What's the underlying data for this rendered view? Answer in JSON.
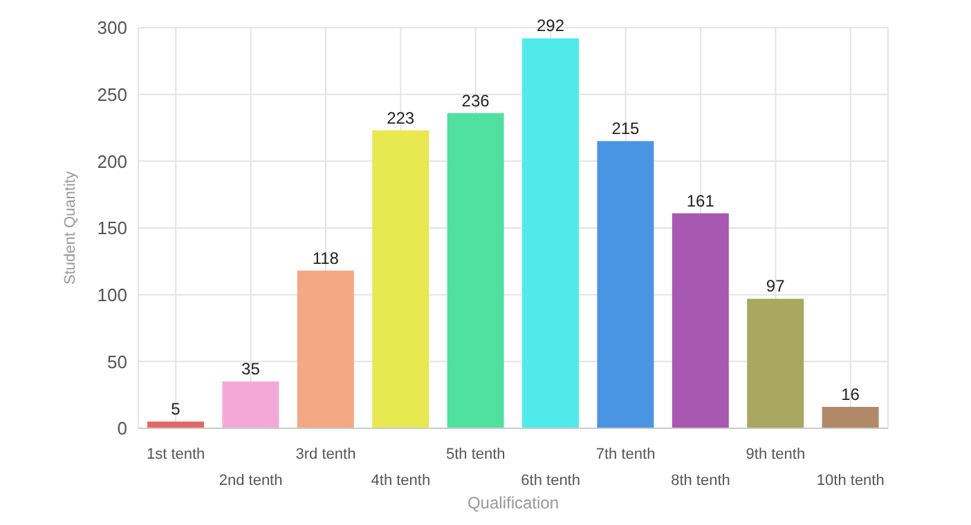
{
  "chart_data": {
    "type": "bar",
    "xlabel": "Qualification",
    "ylabel": "Student Quantity",
    "categories": [
      "1st tenth",
      "2nd tenth",
      "3rd tenth",
      "4th tenth",
      "5th tenth",
      "6th tenth",
      "7th tenth",
      "8th tenth",
      "9th tenth",
      "10th tenth"
    ],
    "values": [
      5,
      35,
      118,
      223,
      236,
      292,
      215,
      161,
      97,
      16
    ],
    "colors": [
      "#e06868",
      "#f4a8d8",
      "#f4a884",
      "#e8e850",
      "#50e0a0",
      "#50eaea",
      "#4a94e4",
      "#a858b0",
      "#a8a860",
      "#b08a68"
    ],
    "ylim": [
      0,
      300
    ],
    "yticks": [
      0,
      50,
      100,
      150,
      200,
      250,
      300
    ],
    "grid": true,
    "data_labels": true
  }
}
